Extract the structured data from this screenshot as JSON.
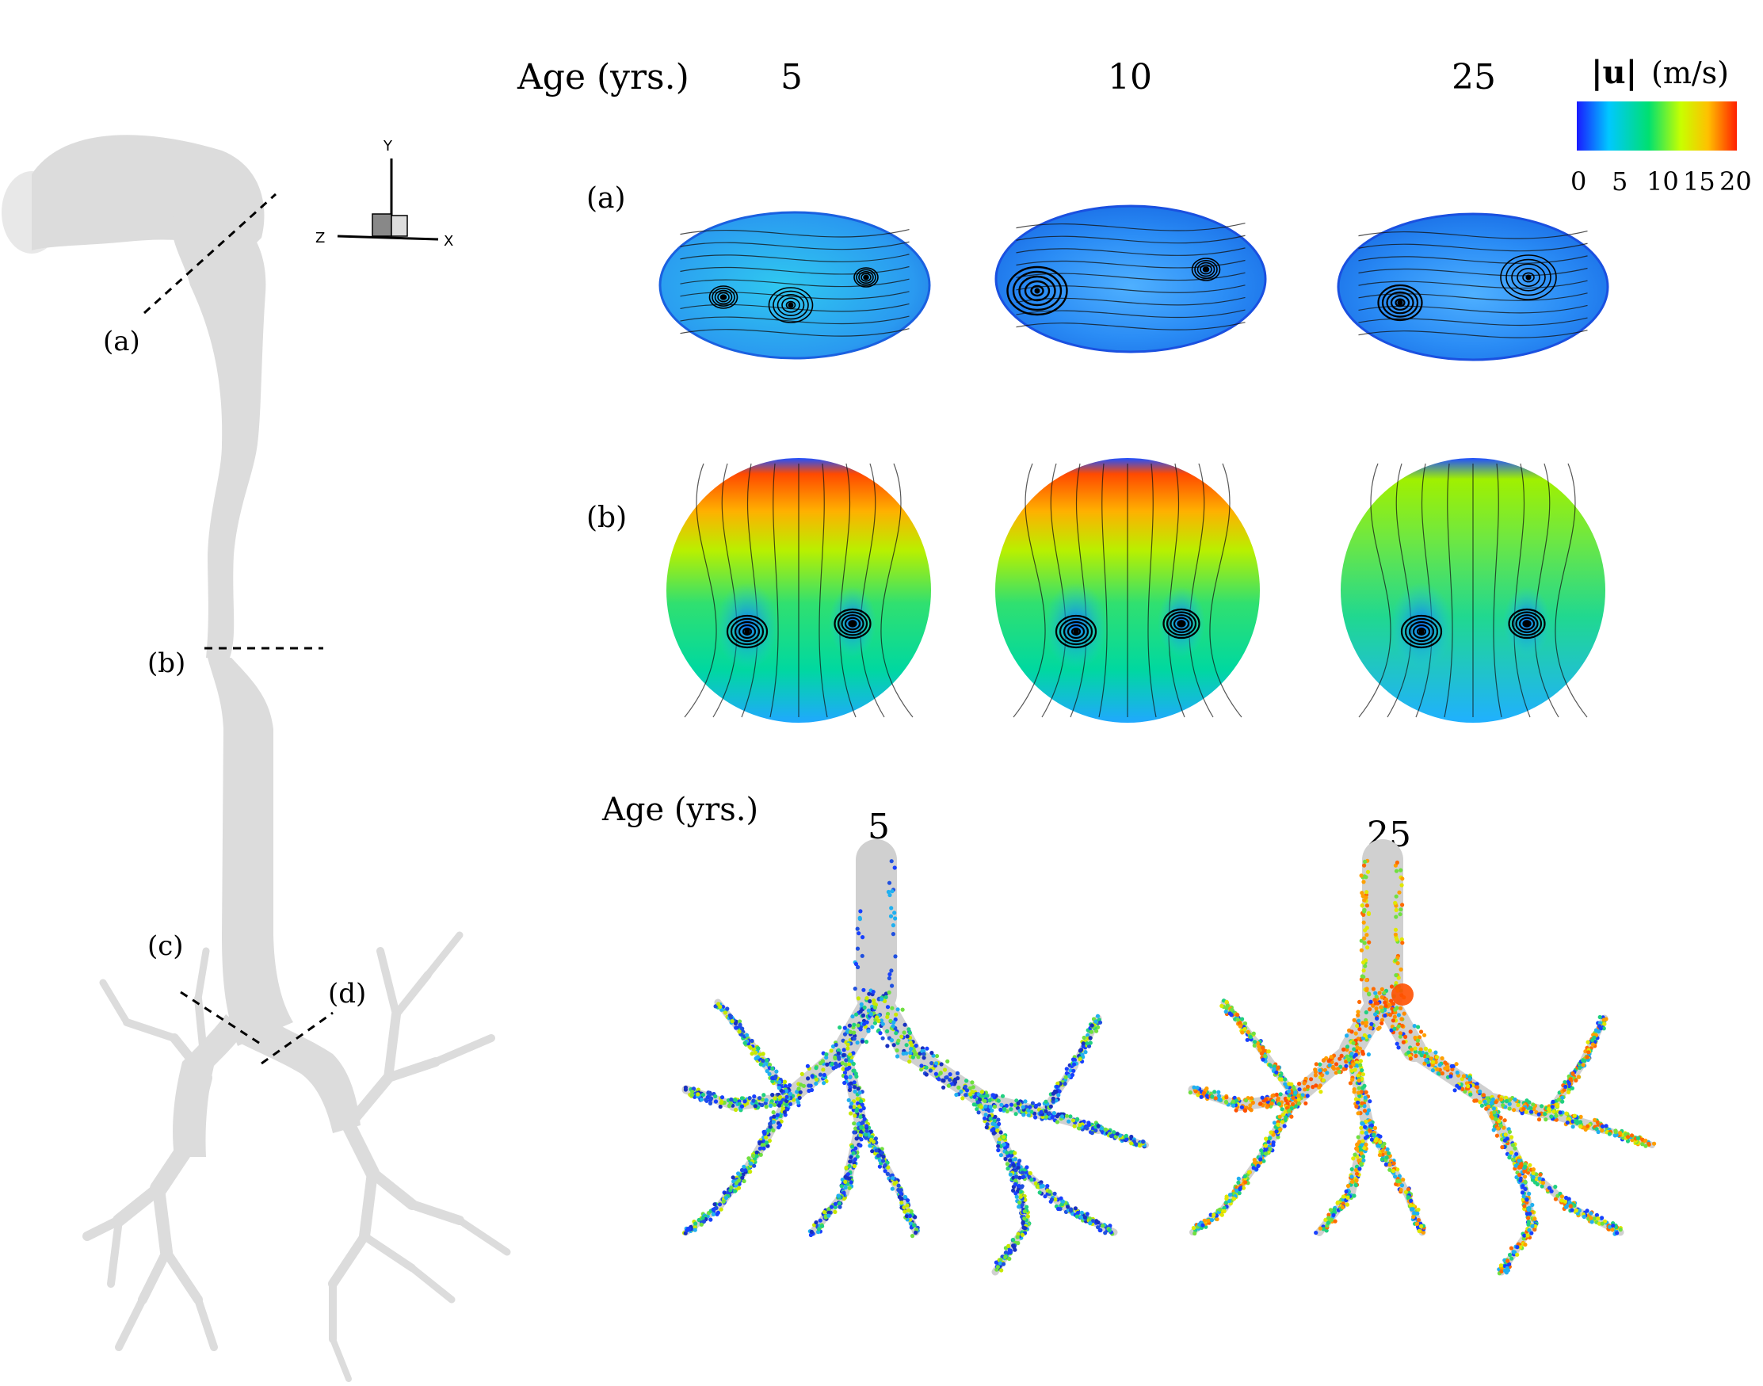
{
  "header": {
    "age_label": "Age (yrs.)",
    "ages": [
      "5",
      "10",
      "25"
    ]
  },
  "colorbar": {
    "title_sym": "|u|",
    "title_unit": "(m/s)",
    "ticks": [
      "0",
      "5",
      "10",
      "15",
      "20"
    ],
    "colors": [
      "#1a1aff",
      "#00c8ff",
      "#00e070",
      "#c8ff00",
      "#ffc000",
      "#ff2000"
    ],
    "range": [
      0,
      20
    ]
  },
  "geometry_panel": {
    "cut_labels": [
      "(a)",
      "(b)",
      "(c)",
      "(d)"
    ],
    "triad": {
      "y": "Y",
      "z": "Z",
      "x": "X"
    },
    "airway_color": "#dcdcdc"
  },
  "sections": {
    "row_a_label": "(a)",
    "row_b_label": "(b)"
  },
  "particles": {
    "age_label": "Age (yrs.)",
    "ages": [
      "5",
      "25"
    ]
  }
}
